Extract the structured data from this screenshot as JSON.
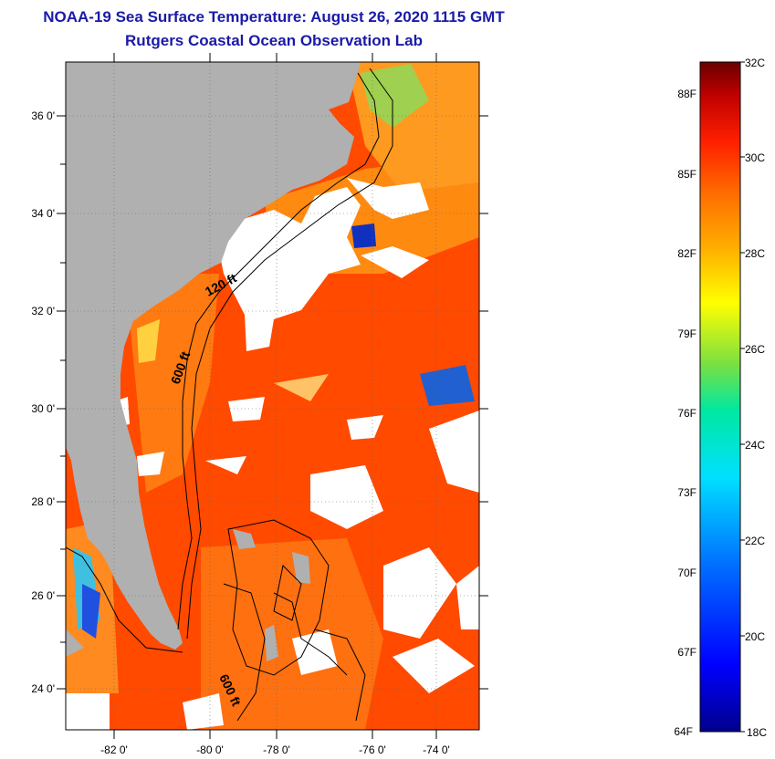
{
  "header": {
    "title": "NOAA-19 Sea Surface Temperature:  August 26, 2020 1115 GMT",
    "subtitle": "Rutgers Coastal Ocean Observation Lab"
  },
  "map": {
    "lat_labels": [
      "36 0'",
      "34 0'",
      "32 0'",
      "30 0'",
      "28 0'",
      "26 0'",
      "24 0'"
    ],
    "lon_labels": [
      "-82 0'",
      "-80 0'",
      "-78 0'",
      "-76 0'",
      "-74 0'"
    ],
    "contour_labels": {
      "c120": "120 ft",
      "c600a": "600 ft",
      "c600b": "600 ft"
    },
    "colors": {
      "land": "#b0b0b0",
      "cloud": "#ffffff",
      "warm_water": "#ff4500",
      "shelf_water": "#ff8c00"
    }
  },
  "colorbar": {
    "min_c": 18,
    "max_c": 32,
    "celsius_labels": [
      "32C",
      "30C",
      "28C",
      "26C",
      "24C",
      "22C",
      "20C",
      "18C"
    ],
    "fahrenheit_labels": [
      "88F",
      "85F",
      "82F",
      "79F",
      "76F",
      "73F",
      "70F",
      "67F",
      "64F"
    ]
  }
}
